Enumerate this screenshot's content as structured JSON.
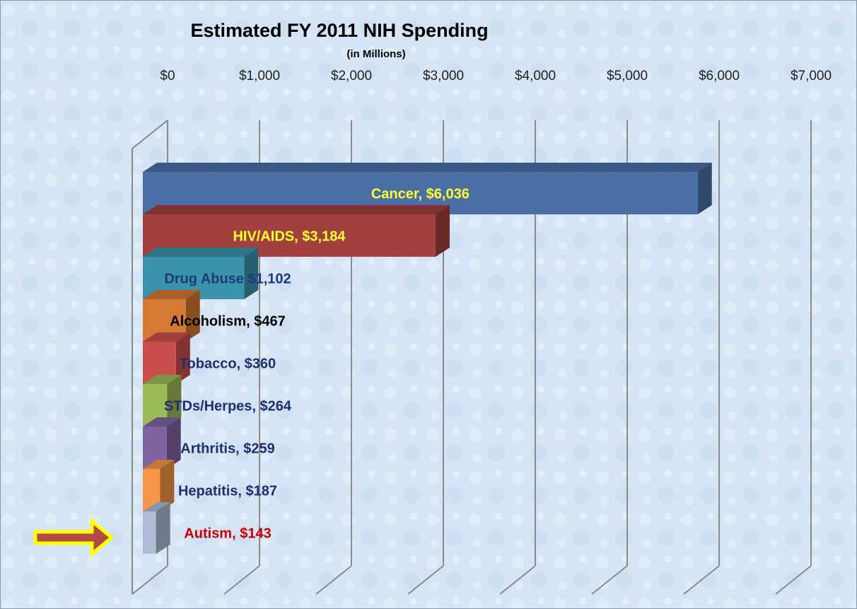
{
  "chart_data": {
    "type": "bar3d-horizontal",
    "title": "Estimated FY 2011 NIH Spending",
    "subtitle": "(in Millions)",
    "values": [
      6036,
      3184,
      1102,
      467,
      360,
      264,
      259,
      187,
      143
    ],
    "value_labels": [
      "Cancer, $6,036",
      "HIV/AIDS, $3,184",
      "Drug Abuse $1,102",
      "Alcoholism, $467",
      "Tobacco, $360",
      "STDs/Herpes, $264",
      "Arthritis, $259",
      "Hepatitis, $187",
      "Autism, $143"
    ],
    "colors": [
      "#4a6fa5",
      "#a2403d",
      "#3b93ab",
      "#d57a34",
      "#c94f4c",
      "#9bbb59",
      "#8064a2",
      "#f79646",
      "#aebcd6"
    ],
    "label_colors": [
      "#ffff33",
      "#ffff33",
      "#1f3a7a",
      "#000000",
      "#1f2f6e",
      "#1f2f6e",
      "#1f2f6e",
      "#1f2f6e",
      "#cc0000"
    ],
    "xlim": [
      0,
      7000
    ],
    "xticks": [
      {
        "value": 0,
        "label": "$0"
      },
      {
        "value": 1000,
        "label": "$1,000"
      },
      {
        "value": 2000,
        "label": "$2,000"
      },
      {
        "value": 3000,
        "label": "$3,000"
      },
      {
        "value": 4000,
        "label": "$4,000"
      },
      {
        "value": 5000,
        "label": "$5,000"
      },
      {
        "value": 6000,
        "label": "$6,000"
      },
      {
        "value": 7000,
        "label": "$7,000"
      }
    ],
    "grid": true
  }
}
